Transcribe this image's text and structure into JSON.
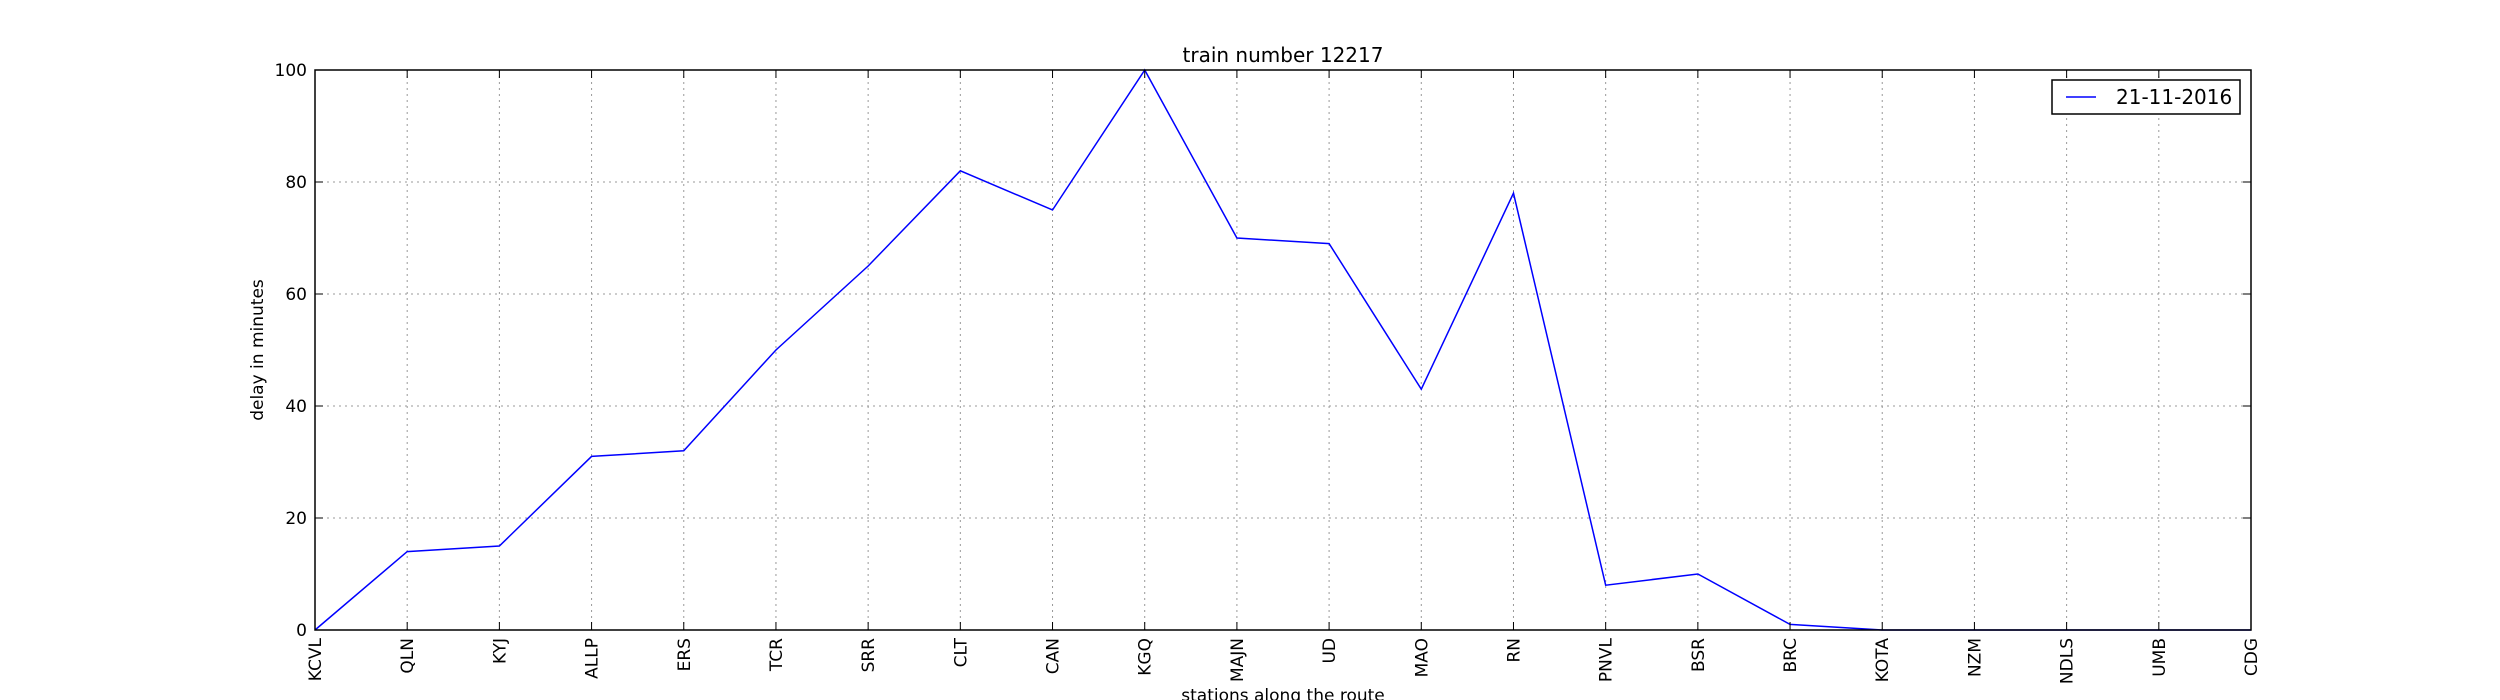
{
  "chart_data": {
    "type": "line",
    "title": "train number 12217",
    "xlabel": "stations along the route",
    "ylabel": "delay in minutes",
    "categories": [
      "KCVL",
      "QLN",
      "KYJ",
      "ALLP",
      "ERS",
      "TCR",
      "SRR",
      "CLT",
      "CAN",
      "KGQ",
      "MAJN",
      "UD",
      "MAO",
      "RN",
      "PNVL",
      "BSR",
      "BRC",
      "KOTA",
      "NZM",
      "NDLS",
      "UMB",
      "CDG"
    ],
    "series": [
      {
        "name": "21-11-2016",
        "color": "#0000ff",
        "values": [
          0,
          14,
          15,
          31,
          32,
          50,
          65,
          82,
          75,
          100,
          70,
          69,
          43,
          78,
          8,
          10,
          1,
          0,
          0,
          0,
          0,
          0
        ]
      }
    ],
    "ylim": [
      0,
      100
    ],
    "yticks": [
      0,
      20,
      40,
      60,
      80,
      100
    ],
    "grid": true,
    "legend_position": "top-right"
  }
}
